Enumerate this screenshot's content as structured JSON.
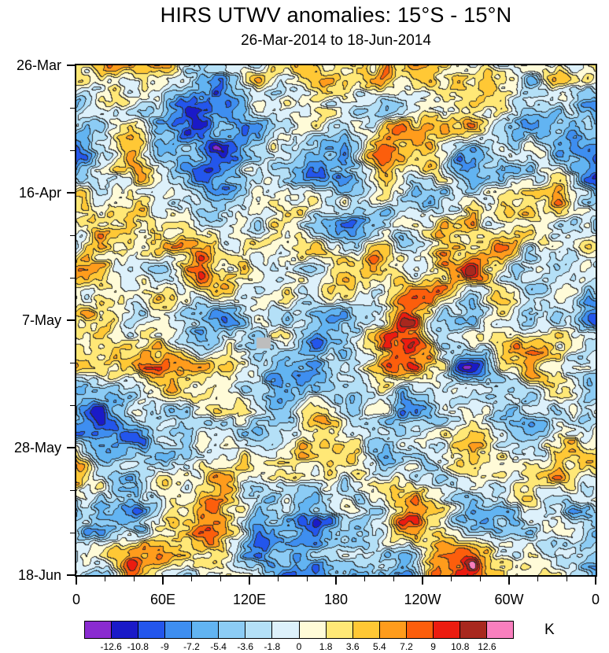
{
  "chart_data": {
    "type": "heatmap",
    "title": "HIRS UTWV anomalies: 15°S - 15°N",
    "subtitle": "26-Mar-2014 to 18-Jun-2014",
    "plot_kind": "time-longitude Hovmoller filled-contour field of upper-tropospheric water vapor anomalies; mottled blobs spanning the full colorbar range, most of the field between -9 and +9 K, thin dark contour lines at each 1.8 K level, one small gray missing-data patch near 125E in early May",
    "x_axis": {
      "ticks": [
        "0",
        "60E",
        "120E",
        "180",
        "120W",
        "60W",
        "0"
      ],
      "minor_ticks_between_major": 2
    },
    "y_axis": {
      "ticks": [
        "26-Mar",
        "16-Apr",
        "7-May",
        "28-May",
        "18-Jun"
      ],
      "minor_ticks_between_major": 2,
      "direction": "time increases downward"
    },
    "colorbar": {
      "units": "K",
      "labels": [
        "-12.6",
        "-10.8",
        "-9",
        "-7.2",
        "-5.4",
        "-3.6",
        "-1.8",
        "0",
        "1.8",
        "3.6",
        "5.4",
        "7.2",
        "9",
        "10.8",
        "12.6"
      ],
      "boundaries": [
        -12.6,
        -10.8,
        -9,
        -7.2,
        -5.4,
        -3.6,
        -1.8,
        0,
        1.8,
        3.6,
        5.4,
        7.2,
        9,
        10.8,
        12.6
      ],
      "contour_interval": 1.8,
      "colors": [
        "#8A2BD0",
        "#1A1AC8",
        "#2356EC",
        "#3E8EF0",
        "#62B4F2",
        "#8CCCF5",
        "#B4E0F7",
        "#DDF1FB",
        "#FFFBD8",
        "#FFE876",
        "#FFC835",
        "#FF9C1C",
        "#FC5E0C",
        "#EC1C10",
        "#A8281E",
        "#F97FBE"
      ]
    },
    "missing_data_color": "#BDBDBD",
    "contour_line_color": "#2A2A2A"
  }
}
